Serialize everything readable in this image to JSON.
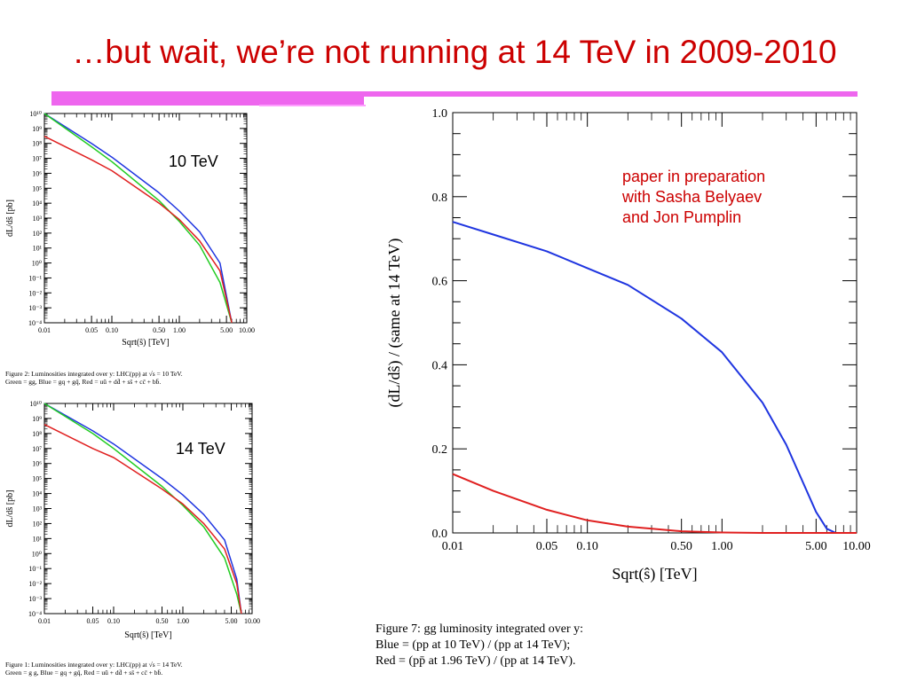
{
  "slide": {
    "title": "…but wait, we’re not running at 14 TeV in 2009-2010",
    "note_lines": [
      "paper in preparation",
      "with Sasha Belyaev",
      "and Jon Pumplin"
    ]
  },
  "left_top": {
    "label": "10 TeV",
    "caption_lines": [
      "Figure 2: Luminosities integrated over y: LHC(pp) at √s = 10 TeV.",
      "Green = gg, Blue = gq + gq̄, Red = uū + dd̄ + ss̄ + cc̄ + bb̄."
    ]
  },
  "left_bottom": {
    "label": "14 TeV",
    "caption_lines": [
      "Figure 1: Luminosities integrated over y: LHC(pp) at √s = 14 TeV.",
      "Green = g g, Blue = gq + gq̄, Red = uū + dd̄ + ss̄ + cc̄ + bb̄."
    ]
  },
  "main_caption_lines": [
    "Figure 7: gg luminosity integrated over y:",
    "Blue = (pp at 10 TeV) / (pp at 14 TeV);",
    "Red = (pp̄ at 1.96 TeV) / (pp at 14 TeV)."
  ],
  "colors": {
    "title": "#cc0000",
    "accent_bar": "#ee66ee",
    "blue": "#1f35e0",
    "green": "#22cc22",
    "red": "#e02020"
  },
  "chart_data": [
    {
      "type": "line",
      "title": "",
      "xlabel": "Sqrt(ŝ) [TeV]",
      "ylabel": "dL/dŝ [pb]",
      "xscale": "log",
      "yscale": "log",
      "xlim": [
        0.01,
        10.0
      ],
      "ylim": [
        0.0001,
        10000000000.0
      ],
      "xticks": [
        "0.01",
        "0.05",
        "0.10",
        "0.50",
        "1.00",
        "5.00",
        "10.00"
      ],
      "yticks": [
        "10¹⁰",
        "10⁹",
        "10⁸",
        "10⁷",
        "10⁶",
        "10⁵",
        "10⁴",
        "10³",
        "10²",
        "10¹",
        "10⁰",
        "10⁻¹",
        "10⁻²",
        "10⁻³",
        "10⁻⁴"
      ],
      "x": [
        0.01,
        0.05,
        0.1,
        0.5,
        1.0,
        2.0,
        4.0,
        6.0
      ],
      "series": [
        {
          "name": "Blue",
          "color": "#1f35e0",
          "y": [
            10000000000.0,
            100000000.0,
            12000000.0,
            50000.0,
            3000.0,
            120.0,
            1.0,
            0.0001
          ]
        },
        {
          "name": "Green",
          "color": "#22cc22",
          "y": [
            10000000000.0,
            60000000.0,
            6000000.0,
            15000.0,
            600.0,
            15.0,
            0.05,
            0.0001
          ]
        },
        {
          "name": "Red",
          "color": "#e02020",
          "y": [
            300000000.0,
            8000000.0,
            1500000.0,
            10000.0,
            800.0,
            30.0,
            0.3,
            0.0001
          ]
        }
      ],
      "legend": "none"
    },
    {
      "type": "line",
      "title": "",
      "xlabel": "Sqrt(ŝ) [TeV]",
      "ylabel": "dL/dŝ [pb]",
      "xscale": "log",
      "yscale": "log",
      "xlim": [
        0.01,
        10.0
      ],
      "ylim": [
        0.0001,
        10000000000.0
      ],
      "xticks": [
        "0.01",
        "0.05",
        "0.10",
        "0.50",
        "1.00",
        "5.00",
        "10.00"
      ],
      "yticks": [
        "10¹⁰",
        "10⁹",
        "10⁸",
        "10⁷",
        "10⁶",
        "10⁵",
        "10⁴",
        "10³",
        "10²",
        "10¹",
        "10⁰",
        "10⁻¹",
        "10⁻²",
        "10⁻³",
        "10⁻⁴"
      ],
      "x": [
        0.01,
        0.05,
        0.1,
        0.5,
        1.0,
        2.0,
        4.0,
        6.0,
        7.0
      ],
      "series": [
        {
          "name": "Blue",
          "color": "#1f35e0",
          "y": [
            10000000000.0,
            150000000.0,
            20000000.0,
            100000.0,
            8000.0,
            400.0,
            8.0,
            0.02,
            0.0001
          ]
        },
        {
          "name": "Green",
          "color": "#22cc22",
          "y": [
            10000000000.0,
            100000000.0,
            10000000.0,
            30000.0,
            1600.0,
            60.0,
            0.5,
            0.002,
            0.0001
          ]
        },
        {
          "name": "Red",
          "color": "#e02020",
          "y": [
            400000000.0,
            10000000.0,
            2500000.0,
            20000.0,
            2000.0,
            100.0,
            2.0,
            0.01,
            0.0001
          ]
        }
      ],
      "legend": "none"
    },
    {
      "type": "line",
      "title": "",
      "xlabel": "Sqrt(ŝ) [TeV]",
      "ylabel": "(dL/dŝ) / (same at 14 TeV)",
      "xscale": "log",
      "xlim": [
        0.01,
        10.0
      ],
      "ylim": [
        0.0,
        1.0
      ],
      "xticks": [
        "0.01",
        "0.05",
        "0.10",
        "0.50",
        "1.00",
        "5.00",
        "10.00"
      ],
      "yticks": [
        "0.0",
        "0.2",
        "0.4",
        "0.6",
        "0.8",
        "1.0"
      ],
      "x": [
        0.01,
        0.02,
        0.05,
        0.1,
        0.2,
        0.5,
        1.0,
        2.0,
        3.0,
        4.0,
        5.0,
        6.0,
        7.0,
        10.0
      ],
      "series": [
        {
          "name": "Blue",
          "color": "#1f35e0",
          "y": [
            0.74,
            0.71,
            0.67,
            0.63,
            0.59,
            0.51,
            0.43,
            0.31,
            0.21,
            0.12,
            0.05,
            0.01,
            0.0,
            0.0
          ]
        },
        {
          "name": "Red",
          "color": "#e02020",
          "y": [
            0.14,
            0.1,
            0.055,
            0.03,
            0.015,
            0.004,
            0.001,
            0.0,
            0.0,
            0.0,
            0.0,
            0.0,
            0.0,
            0.0
          ]
        }
      ],
      "grid": false,
      "legend": "none"
    }
  ]
}
